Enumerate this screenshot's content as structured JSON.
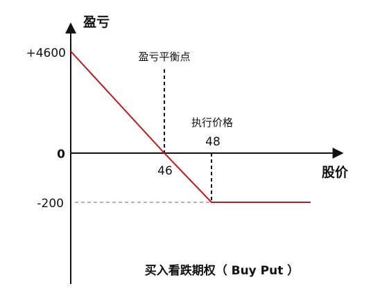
{
  "axes": {
    "y_label": "盈亏",
    "x_label": "股价"
  },
  "ticks": {
    "y_max": "+4600",
    "y_zero": "0",
    "y_min": "-200"
  },
  "annotations": {
    "breakeven_title": "盈亏平衡点",
    "breakeven_value": "46",
    "strike_title": "执行价格",
    "strike_value": "48"
  },
  "caption": "买入看跌期权（ Buy Put ）",
  "colors": {
    "payoff_line": "#c0161c",
    "axis": "#111111",
    "guide": "#999999"
  },
  "chart_data": {
    "type": "line",
    "title": "买入看跌期权（ Buy Put ）",
    "xlabel": "股价",
    "ylabel": "盈亏",
    "series": [
      {
        "points": [
          [
            0,
            4600
          ],
          [
            46,
            0
          ],
          [
            48,
            -200
          ]
        ]
      }
    ],
    "breakeven_price": 46,
    "strike_price": 48,
    "max_loss": -200,
    "max_profit": 4600
  }
}
